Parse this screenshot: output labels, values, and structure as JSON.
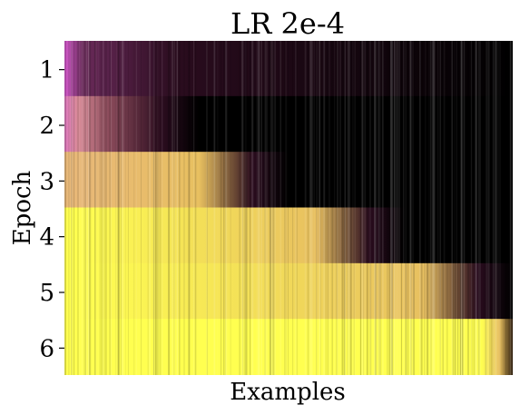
{
  "chart_data": {
    "type": "heatmap",
    "title": "LR 2e-4",
    "xlabel": "Examples",
    "ylabel": "Epoch",
    "y_ticks": [
      "1",
      "2",
      "3",
      "4",
      "5",
      "6"
    ],
    "x_ticks": [],
    "colormap": [
      "#000000",
      "#2a0c1e",
      "#c97f86",
      "#e8c060",
      "#ffff50"
    ],
    "row_transition_fraction": [
      1.0,
      0.22,
      0.42,
      0.68,
      0.92,
      1.0
    ],
    "row_top_left_color": "#d75cd0"
  }
}
